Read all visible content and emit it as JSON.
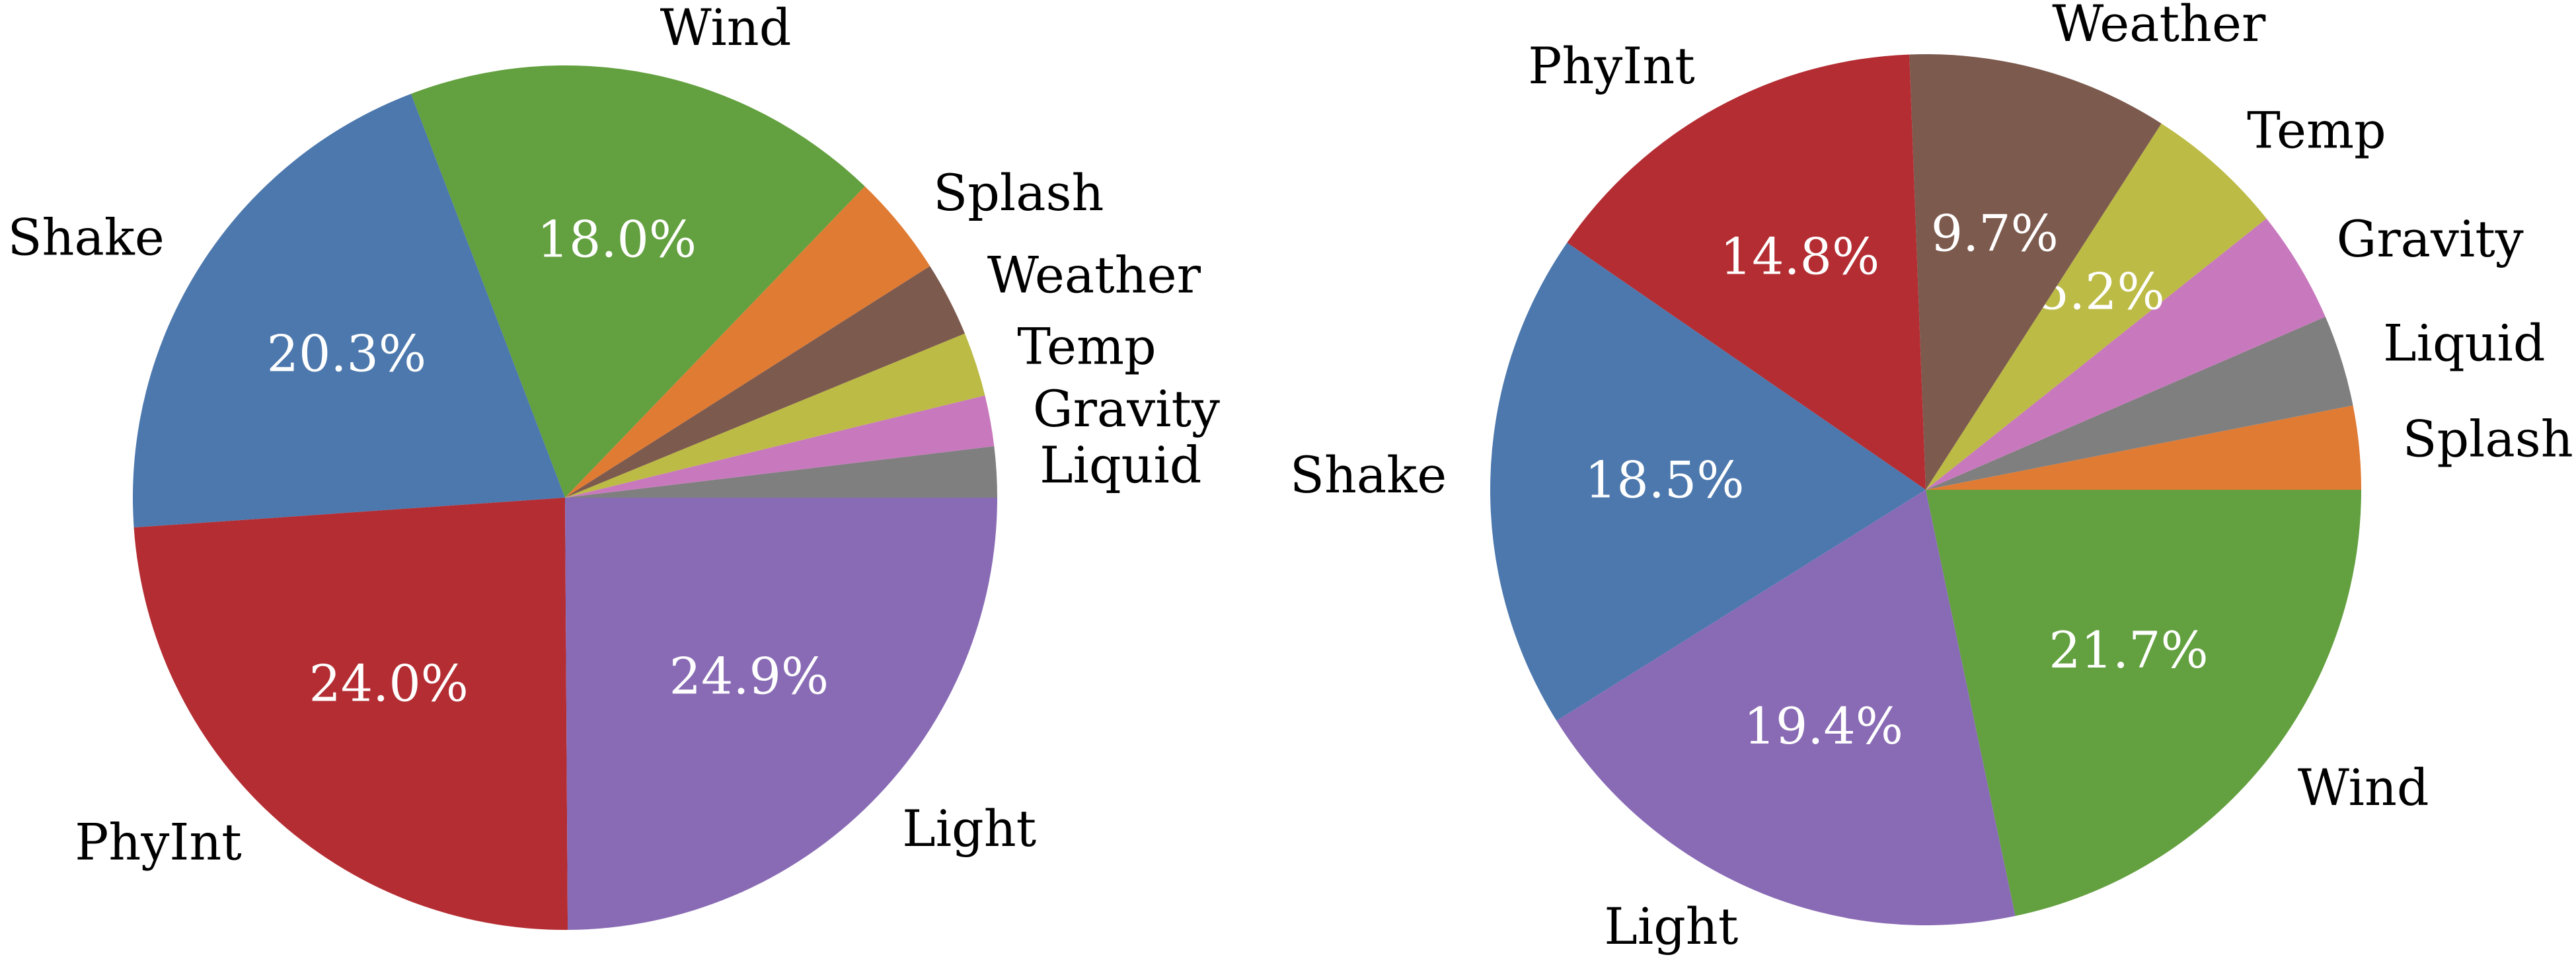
{
  "chart_data": [
    {
      "type": "pie",
      "categories": [
        "Liquid",
        "Gravity",
        "Temp",
        "Weather",
        "Splash",
        "Wind",
        "Shake",
        "PhyInt",
        "Light"
      ],
      "values": [
        1.9,
        1.9,
        2.4,
        2.8,
        3.8,
        18.0,
        20.3,
        24.0,
        24.9
      ],
      "value_labels": [
        null,
        null,
        null,
        null,
        null,
        "18.0%",
        "20.3%",
        "24.0%",
        "24.9%"
      ],
      "colors": [
        "#7f7f7f",
        "#c879bd",
        "#bcbb45",
        "#7d5a4e",
        "#e07b33",
        "#63a03f",
        "#4c78ad",
        "#b42d33",
        "#896bb5"
      ]
    },
    {
      "type": "pie",
      "categories": [
        "Splash",
        "Liquid",
        "Gravity",
        "Temp",
        "Weather",
        "PhyInt",
        "Shake",
        "Light",
        "Wind"
      ],
      "values": [
        3.1,
        3.4,
        4.2,
        5.2,
        9.7,
        14.8,
        18.5,
        19.4,
        21.7
      ],
      "value_labels": [
        null,
        null,
        null,
        "5.2%",
        "9.7%",
        "14.8%",
        "18.5%",
        "19.4%",
        "21.7%"
      ],
      "colors": [
        "#e07b33",
        "#7f7f7f",
        "#c879bd",
        "#bcbb45",
        "#7d5a4e",
        "#b42d33",
        "#4c78ad",
        "#896bb5",
        "#63a03f"
      ]
    }
  ]
}
